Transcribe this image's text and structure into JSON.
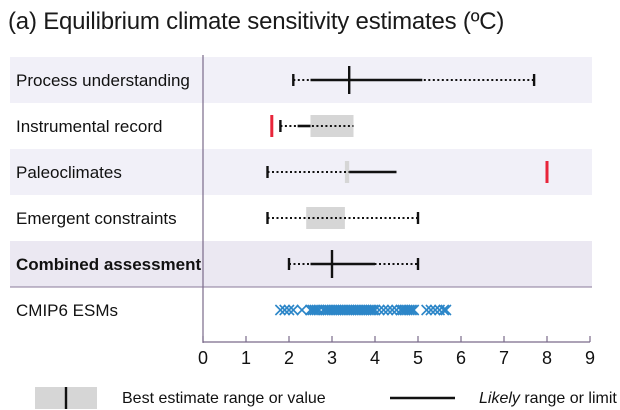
{
  "title": "(a) Equilibrium climate sensitivity  estimates (ºC)",
  "colors": {
    "row_band": "#f1f0f8",
    "combined_band": "#ebe8f2",
    "box_fill": "#d6d6d6",
    "line": "#111111",
    "red_marker": "#e8253a",
    "esm_marker": "#2c86c8",
    "axis": "#7a6a8a"
  },
  "chart_data": {
    "type": "range-plot",
    "title": "(a) Equilibrium climate sensitivity  estimates (ºC)",
    "xlabel": "",
    "xlim": [
      0,
      9
    ],
    "xticks": [
      0,
      1,
      2,
      3,
      4,
      5,
      6,
      7,
      8,
      9
    ],
    "rows": [
      {
        "label": "Process understanding",
        "bold": false,
        "very_likely": [
          2.1,
          7.7
        ],
        "likely": [
          2.5,
          5.1
        ],
        "best_estimate": 3.4,
        "best_range": null,
        "limit_markers": [],
        "ticks_at_ends": true
      },
      {
        "label": "Instrumental record",
        "bold": false,
        "very_likely": [
          1.8,
          3.5
        ],
        "likely": [
          2.2,
          2.5
        ],
        "best_estimate": null,
        "best_range": [
          2.5,
          3.5
        ],
        "limit_markers": [
          1.6
        ],
        "ticks_at_ends": false
      },
      {
        "label": "Paleoclimates",
        "bold": false,
        "very_likely": [
          1.5,
          3.4
        ],
        "likely": [
          3.4,
          4.5
        ],
        "best_estimate": null,
        "best_range": [
          3.3,
          3.4
        ],
        "limit_markers": [
          8.0
        ],
        "ticks_at_ends": false
      },
      {
        "label": "Emergent constraints",
        "bold": false,
        "very_likely": [
          1.5,
          5.0
        ],
        "likely": null,
        "best_estimate": null,
        "best_range": [
          2.4,
          3.3
        ],
        "limit_markers": [],
        "ticks_at_ends": true
      },
      {
        "label": "Combined assessment",
        "bold": true,
        "very_likely": [
          2.0,
          5.0
        ],
        "likely": [
          2.5,
          4.0
        ],
        "best_estimate": 3.0,
        "best_range": null,
        "limit_markers": [],
        "ticks_at_ends": true
      },
      {
        "label": "CMIP6 ESMs",
        "bold": false,
        "esm_values": [
          1.8,
          1.9,
          2.0,
          2.1,
          2.3,
          2.5,
          2.55,
          2.6,
          2.65,
          2.7,
          2.8,
          2.85,
          2.9,
          2.95,
          3.0,
          3.05,
          3.1,
          3.15,
          3.2,
          3.25,
          3.3,
          3.35,
          3.4,
          3.45,
          3.5,
          3.55,
          3.6,
          3.65,
          3.7,
          3.75,
          3.8,
          3.85,
          3.9,
          3.95,
          4.0,
          4.1,
          4.2,
          4.3,
          4.4,
          4.5,
          4.6,
          4.65,
          4.7,
          4.75,
          4.8,
          4.85,
          4.9,
          5.2,
          5.3,
          5.4,
          5.5,
          5.6,
          5.65
        ]
      }
    ],
    "legend": {
      "box_label": "Best estimate range or value",
      "line_label_italic": "Likely",
      "line_label_rest": " range or limit"
    }
  }
}
